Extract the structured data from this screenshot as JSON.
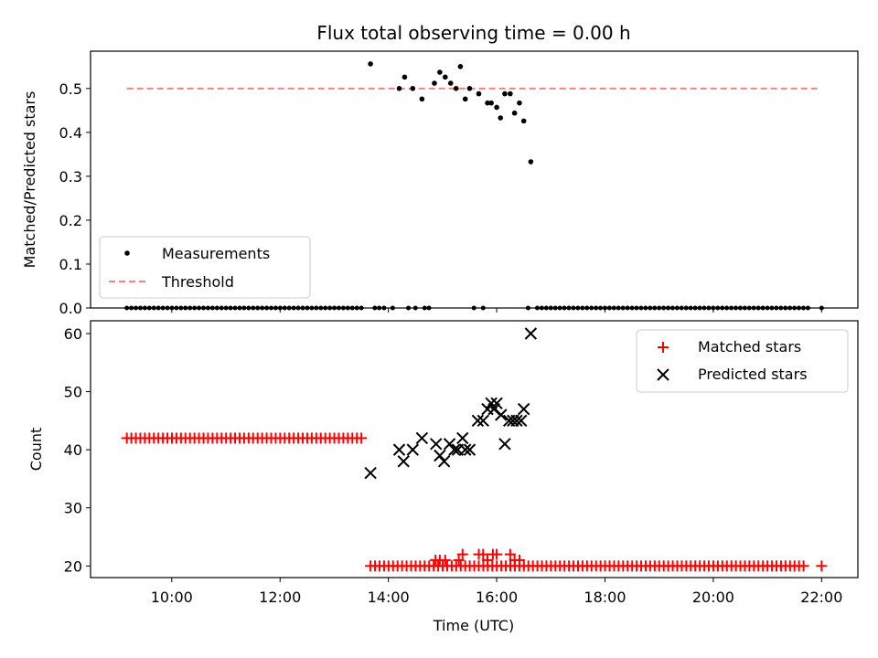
{
  "chart_data": [
    {
      "type": "scatter",
      "title": "Flux total observing time = 0.00 h",
      "xlabel": "",
      "ylabel": "Matched/Predicted stars",
      "xlim": [
        8.5,
        22.67
      ],
      "ylim": [
        0,
        0.585
      ],
      "yticks": [
        0.0,
        0.1,
        0.2,
        0.3,
        0.4,
        0.5
      ],
      "ytick_labels": [
        "0.0",
        "0.1",
        "0.2",
        "0.3",
        "0.4",
        "0.5"
      ],
      "xticks": [
        10,
        12,
        14,
        16,
        18,
        20,
        22
      ],
      "show_xtick_labels": false,
      "legend_position": "lower-left",
      "legend": [
        {
          "label": "Measurements",
          "marker": "dot",
          "color": "#000000"
        },
        {
          "label": "Threshold",
          "marker": "dashed-line",
          "color": "#ff7f7f"
        }
      ],
      "threshold": {
        "name": "Threshold",
        "y": 0.5,
        "x_range": [
          9.17,
          21.92
        ],
        "color": "#ff7f7f"
      },
      "series": [
        {
          "name": "Measurements",
          "color": "#000000",
          "points_x": [
            13.67,
            14.2,
            14.3,
            14.45,
            14.62,
            14.85,
            14.95,
            15.05,
            15.15,
            15.25,
            15.33,
            15.42,
            15.5,
            15.67,
            15.83,
            15.9,
            16.0,
            16.07,
            16.15,
            16.25,
            16.33,
            16.42,
            16.5,
            16.63
          ],
          "points_y": [
            0.556,
            0.5,
            0.526,
            0.5,
            0.476,
            0.512,
            0.537,
            0.526,
            0.512,
            0.5,
            0.55,
            0.476,
            0.5,
            0.488,
            0.467,
            0.467,
            0.457,
            0.433,
            0.488,
            0.488,
            0.444,
            0.467,
            0.426,
            0.333
          ],
          "zeros_x_start": 9.17,
          "zeros_x_end": 13.58,
          "zeros_x_step": 0.0833,
          "zeros_extra_x": [
            13.75,
            13.83,
            13.92,
            14.08,
            14.37,
            14.5,
            14.67,
            14.75,
            15.58,
            15.75,
            16.58
          ],
          "zeros_x2_start": 16.75,
          "zeros_x2_end": 21.75,
          "zeros_x2_step": 0.0833,
          "zeros_last_x": 22.0
        }
      ]
    },
    {
      "type": "scatter",
      "title": "",
      "xlabel": "Time (UTC)",
      "ylabel": "Count",
      "xlim": [
        8.5,
        22.67
      ],
      "ylim": [
        18,
        62.2
      ],
      "yticks": [
        20,
        30,
        40,
        50,
        60
      ],
      "ytick_labels": [
        "20",
        "30",
        "40",
        "50",
        "60"
      ],
      "xticks": [
        10,
        12,
        14,
        16,
        18,
        20,
        22
      ],
      "xtick_labels": [
        "10:00",
        "12:00",
        "14:00",
        "16:00",
        "18:00",
        "20:00",
        "22:00"
      ],
      "legend_position": "top-right",
      "legend": [
        {
          "label": "Matched stars",
          "marker": "plus",
          "color": "#ff0000"
        },
        {
          "label": "Predicted stars",
          "marker": "x",
          "color": "#000000"
        }
      ],
      "series": [
        {
          "name": "Matched stars",
          "color": "#ff0000",
          "marker": "plus",
          "early_value": 42,
          "early_x_start": 9.17,
          "early_x_end": 13.58,
          "early_x_step": 0.0833,
          "late_value": 20,
          "late_x_start": 13.67,
          "late_x_end": 21.75,
          "late_x_step": 0.0833,
          "bumps_x": [
            14.87,
            14.95,
            15.05,
            15.3,
            15.37,
            15.67,
            15.75,
            15.83,
            15.93,
            16.0,
            16.25,
            16.33,
            16.42
          ],
          "bumps_y": [
            21,
            21,
            21,
            21,
            22,
            22,
            22,
            21,
            22,
            22,
            22,
            21,
            21
          ],
          "last_x": 22.0,
          "last_y": 20
        },
        {
          "name": "Predicted stars",
          "color": "#000000",
          "marker": "x",
          "points_x": [
            13.67,
            14.2,
            14.28,
            14.45,
            14.62,
            14.88,
            14.95,
            15.03,
            15.13,
            15.22,
            15.28,
            15.37,
            15.42,
            15.5,
            15.65,
            15.75,
            15.83,
            15.9,
            15.95,
            16.0,
            16.08,
            16.15,
            16.23,
            16.3,
            16.37,
            16.45,
            16.5,
            16.63
          ],
          "points_y": [
            36,
            40,
            38,
            40,
            42,
            41,
            39,
            38,
            41,
            40,
            40,
            42,
            40,
            40,
            45,
            45,
            47,
            48,
            47,
            48,
            46,
            41,
            45,
            45,
            45,
            45,
            47,
            60
          ]
        }
      ]
    }
  ]
}
